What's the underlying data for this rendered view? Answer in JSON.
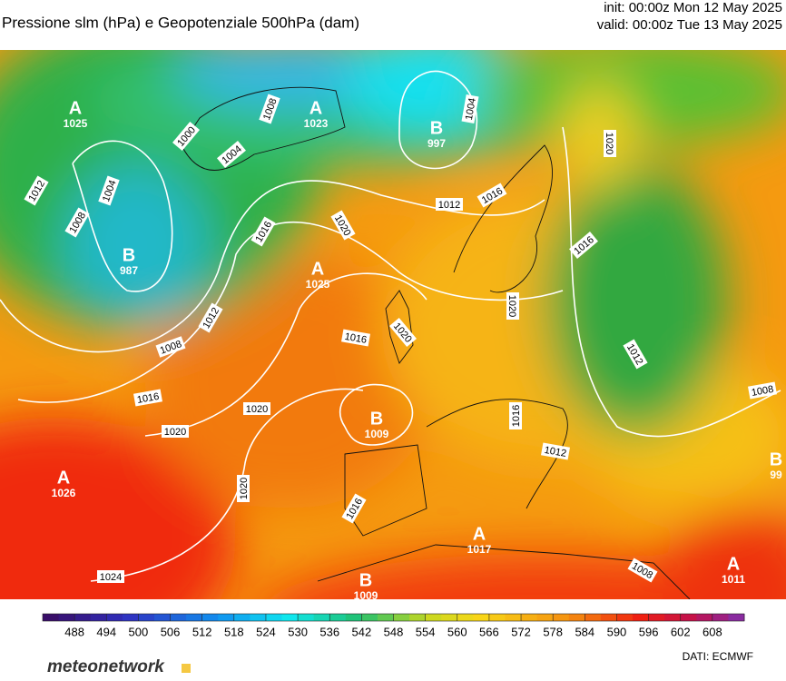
{
  "header": {
    "title": "Pressione slm (hPa) e Geopotenziale 500hPa (dam)",
    "init": "init: 00:00z Mon 12 May 2025",
    "valid": "valid: 00:00z Tue 13 May 2025"
  },
  "centers": [
    {
      "letter": "A",
      "value": "1025"
    },
    {
      "letter": "A",
      "value": "1023"
    },
    {
      "letter": "B",
      "value": "997"
    },
    {
      "letter": "B",
      "value": "987"
    },
    {
      "letter": "A",
      "value": "1025"
    },
    {
      "letter": "B",
      "value": "1009"
    },
    {
      "letter": "A",
      "value": "1026"
    },
    {
      "letter": "A",
      "value": "1017"
    },
    {
      "letter": "B",
      "value": "1009"
    },
    {
      "letter": "A",
      "value": "1011"
    },
    {
      "letter": "B",
      "value": "99"
    }
  ],
  "isobar_labels": [
    "1012",
    "1008",
    "1004",
    "1000",
    "1004",
    "1008",
    "1004",
    "1016",
    "1020",
    "1012",
    "1016",
    "1020",
    "1016",
    "1012",
    "1008",
    "1016",
    "1020",
    "1020",
    "1016",
    "1020",
    "1020",
    "1012",
    "1008",
    "1016",
    "1012",
    "1020",
    "1016",
    "1024",
    "1008"
  ],
  "colorbar": {
    "lim": [
      482,
      614
    ],
    "ticks": [
      488,
      494,
      500,
      506,
      512,
      518,
      524,
      530,
      536,
      542,
      548,
      554,
      560,
      566,
      572,
      578,
      584,
      590,
      596,
      602,
      608
    ]
  },
  "footer": {
    "logo": "meteonetwork",
    "source": "DATI:  ECMWF"
  }
}
